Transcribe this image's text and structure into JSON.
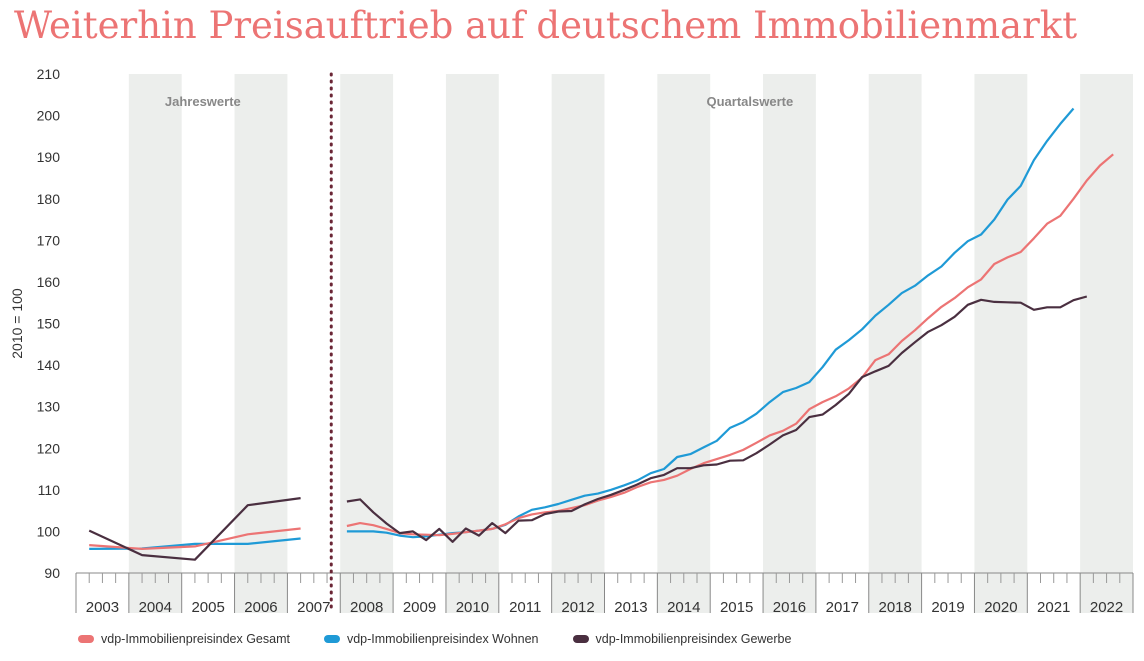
{
  "chart_data": {
    "type": "line",
    "title": "Weiterhin Preisauftrieb auf deutschem Immobilienmarkt",
    "ylabel": "2010 = 100",
    "xlabel": "",
    "ylim": [
      90,
      210
    ],
    "yticks": [
      90,
      100,
      110,
      120,
      130,
      140,
      150,
      160,
      170,
      180,
      190,
      200,
      210
    ],
    "xlim": [
      2003,
      2023
    ],
    "years": [
      "2003",
      "2004",
      "2005",
      "2006",
      "2007",
      "2008",
      "2009",
      "2010",
      "2011",
      "2012",
      "2013",
      "2014",
      "2015",
      "2016",
      "2017",
      "2018",
      "2019",
      "2020",
      "2021",
      "2022"
    ],
    "section_labels": [
      "Jahreswerte",
      "Quartalswerte"
    ],
    "divider_x": 2008,
    "grid": false,
    "legend_position": "bottom",
    "series": [
      {
        "name": "vdp-Immobilienpreisindex Gesamt",
        "color": "#ec7474",
        "annual": [
          [
            2003.25,
            96.7
          ],
          [
            2004.25,
            95.8
          ],
          [
            2005.25,
            96.4
          ],
          [
            2006.25,
            99.3
          ],
          [
            2007.25,
            100.7
          ]
        ],
        "quarterly": [
          101.3,
          102.0,
          101.5,
          100.6,
          99.6,
          99.3,
          99.2,
          99.1,
          99.4,
          99.8,
          100.2,
          100.6,
          101.7,
          103.2,
          104.1,
          104.6,
          104.9,
          105.6,
          106.3,
          107.4,
          108.3,
          109.3,
          110.7,
          111.8,
          112.4,
          113.4,
          115.0,
          116.4,
          117.4,
          118.4,
          119.6,
          121.3,
          123.1,
          124.2,
          125.9,
          129.4,
          131.1,
          132.5,
          134.4,
          137.0,
          141.2,
          142.6,
          145.8,
          148.4,
          151.3,
          154.0,
          156.1,
          158.7,
          160.6,
          164.3,
          165.9,
          167.2,
          170.5,
          174.0,
          175.9,
          180.0,
          184.4,
          188.0,
          190.7
        ]
      },
      {
        "name": "vdp-Immobilienpreisindex Wohnen",
        "color": "#1f9ad6",
        "annual": [
          [
            2003.25,
            95.8
          ],
          [
            2004.25,
            95.9
          ],
          [
            2005.25,
            97.0
          ],
          [
            2006.25,
            97.0
          ],
          [
            2007.25,
            98.3
          ]
        ],
        "quarterly": [
          100.0,
          100.0,
          100.0,
          99.7,
          99.0,
          98.6,
          98.8,
          99.2,
          99.6,
          99.8,
          100.2,
          100.6,
          101.6,
          103.6,
          105.2,
          105.8,
          106.6,
          107.6,
          108.6,
          109.1,
          110.0,
          111.1,
          112.3,
          114.0,
          115.0,
          117.9,
          118.6,
          120.2,
          121.8,
          124.9,
          126.3,
          128.3,
          131.1,
          133.5,
          134.5,
          135.9,
          139.5,
          143.7,
          146.0,
          148.6,
          151.9,
          154.5,
          157.3,
          159.1,
          161.6,
          163.7,
          167.0,
          169.8,
          171.4,
          175.0,
          179.8,
          183.1,
          189.3,
          193.9,
          198.0,
          201.7
        ]
      },
      {
        "name": "vdp-Immobilienpreisindex Gewerbe",
        "color": "#4a2f40",
        "annual": [
          [
            2003.25,
            100.2
          ],
          [
            2004.25,
            94.3
          ],
          [
            2005.25,
            93.2
          ],
          [
            2006.25,
            106.3
          ],
          [
            2007.25,
            108.0
          ]
        ],
        "quarterly": [
          107.2,
          107.7,
          104.6,
          101.9,
          99.6,
          100.0,
          97.9,
          100.6,
          97.5,
          100.7,
          99.0,
          102.0,
          99.6,
          102.6,
          102.7,
          104.2,
          104.8,
          104.9,
          106.5,
          107.8,
          108.8,
          110.0,
          111.3,
          112.8,
          113.6,
          115.2,
          115.2,
          115.9,
          116.1,
          117.0,
          117.1,
          118.8,
          120.9,
          123.1,
          124.4,
          127.5,
          128.1,
          130.4,
          133.1,
          137.1,
          138.5,
          139.8,
          142.9,
          145.5,
          148.0,
          149.6,
          151.6,
          154.5,
          155.7,
          155.2,
          155.1,
          155.0,
          153.3,
          153.9,
          153.9,
          155.6,
          156.5
        ]
      }
    ]
  }
}
